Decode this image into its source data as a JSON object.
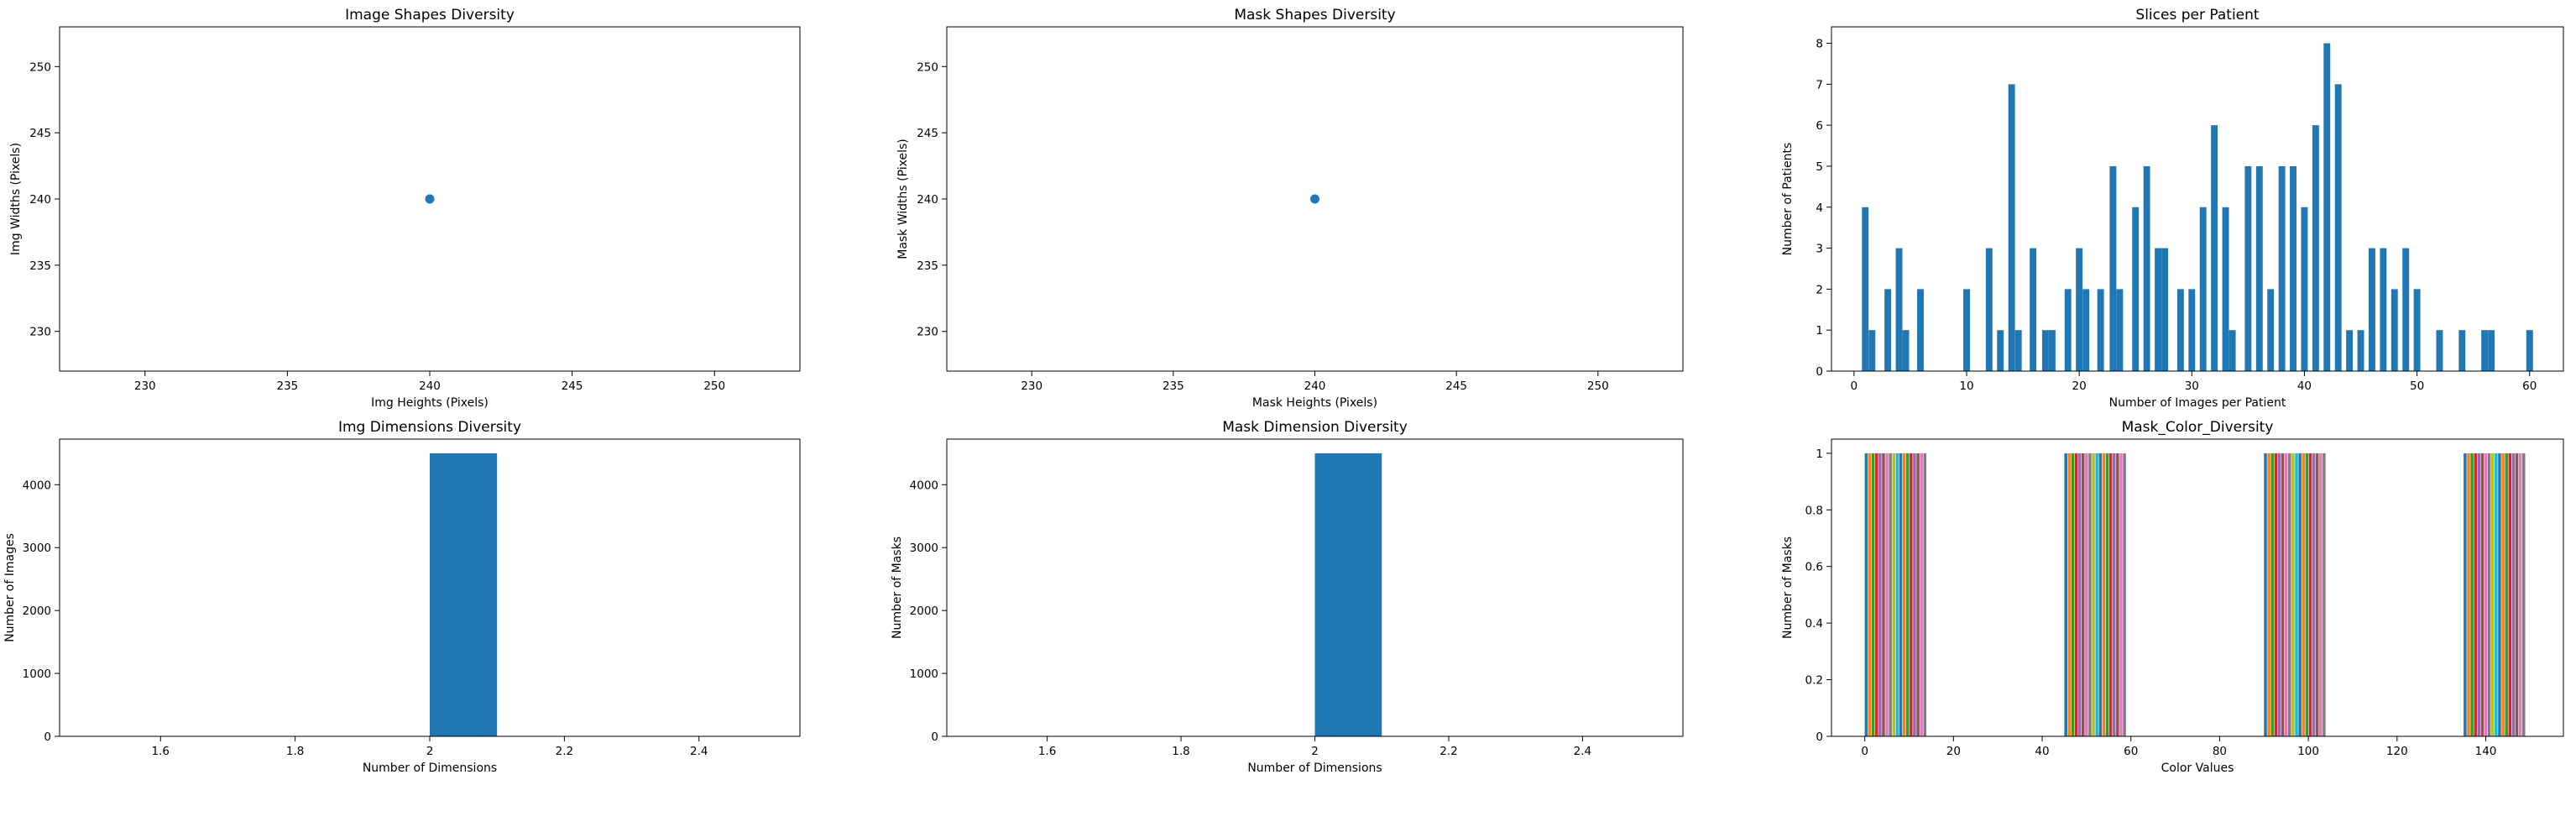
{
  "colors": {
    "primary": "#1f77b4",
    "palette": [
      "#1f77b4",
      "#ff7f0e",
      "#2ca02c",
      "#d62728",
      "#9467bd",
      "#8c564b",
      "#e377c2",
      "#7f7f7f",
      "#bcbd22",
      "#17becf"
    ]
  },
  "chart_data": [
    {
      "type": "scatter",
      "title": "Image Shapes Diversity",
      "xlabel": "Img Heights (Pixels)",
      "ylabel": "Img Widths (Pixels)",
      "xlim": [
        227,
        253
      ],
      "ylim": [
        227,
        253
      ],
      "xticks": [
        230,
        235,
        240,
        245,
        250
      ],
      "yticks": [
        230,
        235,
        240,
        245,
        250
      ],
      "points": [
        {
          "x": 240,
          "y": 240
        }
      ],
      "grid": false
    },
    {
      "type": "scatter",
      "title": "Mask Shapes Diversity",
      "xlabel": "Mask Heights (Pixels)",
      "ylabel": "Mask Widths (Pixels)",
      "xlim": [
        227,
        253
      ],
      "ylim": [
        227,
        253
      ],
      "xticks": [
        230,
        235,
        240,
        245,
        250
      ],
      "yticks": [
        230,
        235,
        240,
        245,
        250
      ],
      "points": [
        {
          "x": 240,
          "y": 240
        }
      ],
      "grid": false
    },
    {
      "type": "bar",
      "title": "Slices per Patient",
      "xlabel": "Number of Images per Patient",
      "ylabel": "Number of Patients",
      "xlim": [
        -2,
        63
      ],
      "ylim": [
        0,
        8.4
      ],
      "xticks": [
        0,
        10,
        20,
        30,
        40,
        50,
        60
      ],
      "yticks": [
        0,
        1,
        2,
        3,
        4,
        5,
        6,
        7,
        8
      ],
      "bar_width": 0.59,
      "bars": [
        {
          "x": 1.0,
          "value": 4
        },
        {
          "x": 1.6,
          "value": 1
        },
        {
          "x": 3.0,
          "value": 2
        },
        {
          "x": 4.0,
          "value": 3
        },
        {
          "x": 4.6,
          "value": 1
        },
        {
          "x": 5.9,
          "value": 2
        },
        {
          "x": 10.0,
          "value": 2
        },
        {
          "x": 12.0,
          "value": 3
        },
        {
          "x": 13.0,
          "value": 1
        },
        {
          "x": 14.0,
          "value": 7
        },
        {
          "x": 14.6,
          "value": 1
        },
        {
          "x": 15.9,
          "value": 3
        },
        {
          "x": 17.0,
          "value": 1
        },
        {
          "x": 17.6,
          "value": 1
        },
        {
          "x": 19.0,
          "value": 2
        },
        {
          "x": 20.0,
          "value": 3
        },
        {
          "x": 20.6,
          "value": 2
        },
        {
          "x": 21.9,
          "value": 2
        },
        {
          "x": 23.0,
          "value": 5
        },
        {
          "x": 23.6,
          "value": 2
        },
        {
          "x": 25.0,
          "value": 4
        },
        {
          "x": 26.0,
          "value": 5
        },
        {
          "x": 27.0,
          "value": 3
        },
        {
          "x": 27.6,
          "value": 3
        },
        {
          "x": 29.0,
          "value": 2
        },
        {
          "x": 30.0,
          "value": 2
        },
        {
          "x": 31.0,
          "value": 4
        },
        {
          "x": 32.0,
          "value": 6
        },
        {
          "x": 33.0,
          "value": 4
        },
        {
          "x": 33.6,
          "value": 1
        },
        {
          "x": 35.0,
          "value": 5
        },
        {
          "x": 36.0,
          "value": 5
        },
        {
          "x": 37.0,
          "value": 2
        },
        {
          "x": 38.0,
          "value": 5
        },
        {
          "x": 39.0,
          "value": 5
        },
        {
          "x": 40.0,
          "value": 4
        },
        {
          "x": 41.0,
          "value": 6
        },
        {
          "x": 42.0,
          "value": 8
        },
        {
          "x": 43.0,
          "value": 7
        },
        {
          "x": 44.0,
          "value": 1
        },
        {
          "x": 45.0,
          "value": 1
        },
        {
          "x": 46.0,
          "value": 3
        },
        {
          "x": 47.0,
          "value": 3
        },
        {
          "x": 48.0,
          "value": 2
        },
        {
          "x": 49.0,
          "value": 3
        },
        {
          "x": 50.0,
          "value": 2
        },
        {
          "x": 52.0,
          "value": 1
        },
        {
          "x": 54.0,
          "value": 1
        },
        {
          "x": 56.0,
          "value": 1
        },
        {
          "x": 56.6,
          "value": 1
        },
        {
          "x": 60.0,
          "value": 1
        }
      ],
      "grid": false
    },
    {
      "type": "bar",
      "title": "Img Dimensions Diversity",
      "xlabel": "Number of Dimensions",
      "ylabel": "Number of Images",
      "xlim": [
        1.45,
        2.55
      ],
      "ylim": [
        0,
        4725
      ],
      "xticks": [
        1.6,
        1.8,
        2.0,
        2.2,
        2.4
      ],
      "yticks": [
        0,
        1000,
        2000,
        3000,
        4000
      ],
      "bars": [
        {
          "x0": 2.0,
          "x1": 2.1,
          "value": 4500
        }
      ],
      "grid": false
    },
    {
      "type": "bar",
      "title": "Mask Dimension Diversity",
      "xlabel": "Number of Dimensions",
      "ylabel": "Number of Masks",
      "xlim": [
        1.45,
        2.55
      ],
      "ylim": [
        0,
        4725
      ],
      "xticks": [
        1.6,
        1.8,
        2.0,
        2.2,
        2.4
      ],
      "yticks": [
        0,
        1000,
        2000,
        3000,
        4000
      ],
      "bars": [
        {
          "x0": 2.0,
          "x1": 2.1,
          "value": 4500
        }
      ],
      "grid": false
    },
    {
      "type": "bar",
      "title": "Mask_Color_Diversity",
      "xlabel": "Color Values",
      "ylabel": "Number of Masks",
      "xlim": [
        -7.5,
        157.5
      ],
      "ylim": [
        0,
        1.05
      ],
      "xticks": [
        0,
        20,
        40,
        60,
        80,
        100,
        120,
        140
      ],
      "yticks": [
        0.0,
        0.2,
        0.4,
        0.6,
        0.8,
        1.0
      ],
      "groups": [
        {
          "start": 0,
          "end": 14,
          "value": 1.0
        },
        {
          "start": 45,
          "end": 59,
          "value": 1.0
        },
        {
          "start": 90,
          "end": 104,
          "value": 1.0
        },
        {
          "start": 135,
          "end": 149,
          "value": 1.0
        }
      ],
      "grid": false
    }
  ]
}
